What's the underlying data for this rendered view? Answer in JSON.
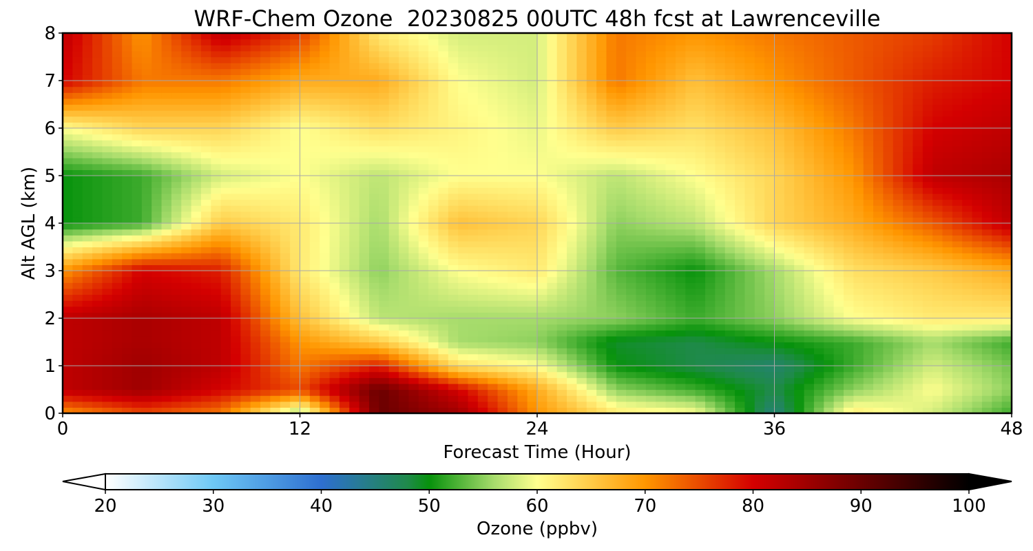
{
  "chart_data": {
    "type": "heatmap",
    "title": "WRF-Chem Ozone  20230825 00UTC 48h fcst at Lawrenceville",
    "xlabel": "Forecast Time (Hour)",
    "ylabel": "Alt AGL (km)",
    "xlim": [
      0,
      48
    ],
    "ylim": [
      0,
      8
    ],
    "xticks": [
      "0",
      "12",
      "24",
      "36",
      "48"
    ],
    "yticks": [
      "0",
      "1",
      "2",
      "3",
      "4",
      "5",
      "6",
      "7",
      "8"
    ],
    "grid": true,
    "x": [
      0,
      4,
      8,
      12,
      16,
      20,
      24,
      28,
      32,
      36,
      40,
      44,
      48
    ],
    "y": [
      0,
      0.5,
      1,
      1.5,
      2,
      3,
      4,
      5,
      6,
      7,
      8
    ],
    "z": [
      [
        70,
        75,
        72,
        55,
        90,
        85,
        70,
        62,
        60,
        45,
        62,
        58,
        52
      ],
      [
        82,
        85,
        80,
        75,
        90,
        80,
        68,
        55,
        52,
        48,
        55,
        60,
        55
      ],
      [
        82,
        85,
        82,
        72,
        78,
        63,
        60,
        50,
        48,
        46,
        52,
        58,
        54
      ],
      [
        82,
        84,
        82,
        70,
        65,
        56,
        55,
        49,
        48,
        50,
        52,
        56,
        52
      ],
      [
        82,
        84,
        82,
        66,
        57,
        56,
        56,
        55,
        52,
        55,
        60,
        62,
        62
      ],
      [
        70,
        80,
        78,
        62,
        55,
        60,
        62,
        53,
        50,
        56,
        63,
        65,
        68
      ],
      [
        50,
        52,
        65,
        62,
        56,
        66,
        64,
        55,
        57,
        64,
        68,
        74,
        82
      ],
      [
        50,
        52,
        58,
        60,
        57,
        60,
        60,
        57,
        60,
        64,
        70,
        82,
        84
      ],
      [
        60,
        64,
        64,
        60,
        63,
        61,
        59,
        65,
        63,
        66,
        72,
        80,
        82
      ],
      [
        80,
        72,
        72,
        68,
        68,
        60,
        58,
        72,
        66,
        70,
        74,
        78,
        80
      ],
      [
        82,
        70,
        82,
        76,
        62,
        58,
        58,
        72,
        70,
        72,
        74,
        76,
        80
      ]
    ],
    "colorbar": {
      "label": "Ozone  (ppbv)",
      "vmin": 20,
      "vmax": 100,
      "ticks": [
        "20",
        "30",
        "40",
        "50",
        "60",
        "70",
        "80",
        "90",
        "100"
      ],
      "extend": "both",
      "colors": {
        "20": "#ffffff",
        "30": "#6ec8f5",
        "40": "#2e6fd0",
        "48": "#1f8a4a",
        "50": "#07920c",
        "56": "#a7dc6c",
        "60": "#ffff8e",
        "70": "#ff9600",
        "80": "#d40000",
        "90": "#6a0000",
        "100": "#000000"
      }
    }
  }
}
